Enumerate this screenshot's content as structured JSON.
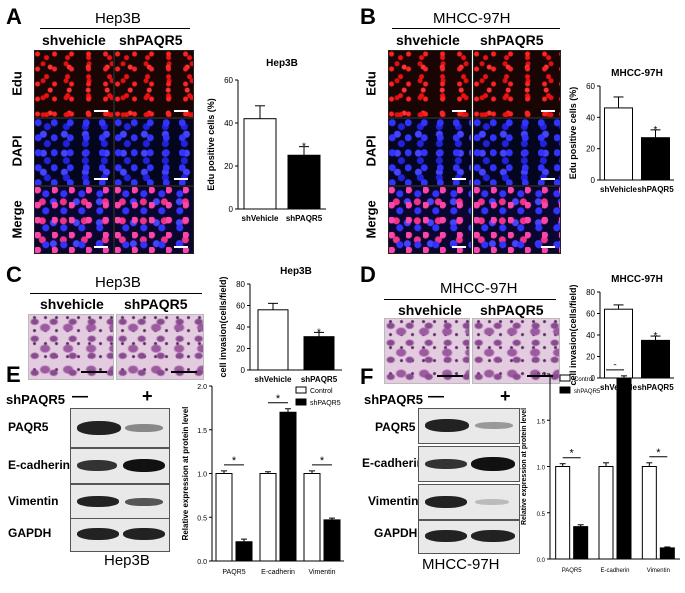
{
  "panels": {
    "A": {
      "label": "A",
      "title": "Hep3B",
      "conditions": [
        "shvehicle",
        "shPAQR5"
      ],
      "rows": [
        "Edu",
        "DAPI",
        "Merge"
      ]
    },
    "B": {
      "label": "B",
      "title": "MHCC-97H",
      "conditions": [
        "shvehicle",
        "shPAQR5"
      ],
      "rows": [
        "Edu",
        "DAPI",
        "Merge"
      ]
    },
    "C": {
      "label": "C",
      "title": "Hep3B",
      "conditions": [
        "shvehicle",
        "shPAQR5"
      ]
    },
    "D": {
      "label": "D",
      "title": "MHCC-97H",
      "conditions": [
        "shvehicle",
        "shPAQR5"
      ]
    },
    "E": {
      "label": "E",
      "cell_line": "Hep3B",
      "sh_label": "shPAQR5",
      "minus": "—",
      "plus": "+",
      "proteins": [
        "PAQR5",
        "E-cadherin",
        "Vimentin",
        "GAPDH"
      ]
    },
    "F": {
      "label": "F",
      "cell_line": "MHCC-97H",
      "sh_label": "shPAQR5",
      "minus": "—",
      "plus": "+",
      "proteins": [
        "PAQR5",
        "E-cadherin",
        "Vimentin",
        "GAPDH"
      ]
    }
  },
  "chart_data": [
    {
      "id": "A",
      "type": "bar",
      "title": "Hep3B",
      "ylabel": "Edu positive cells (%)",
      "categories": [
        "shVehicle",
        "shPAQR5"
      ],
      "values": [
        42,
        25
      ],
      "errors": [
        6,
        4
      ],
      "ylim": [
        0,
        60
      ],
      "yticks": [
        0,
        20,
        40,
        60
      ],
      "fills": [
        "#ffffff",
        "#000000"
      ],
      "significance": [
        "",
        "*"
      ]
    },
    {
      "id": "B",
      "type": "bar",
      "title": "MHCC-97H",
      "ylabel": "Edu positive cells (%)",
      "categories": [
        "shVehicle",
        "shPAQR5"
      ],
      "values": [
        46,
        27
      ],
      "errors": [
        7,
        5
      ],
      "ylim": [
        0,
        60
      ],
      "yticks": [
        0,
        20,
        40,
        60
      ],
      "fills": [
        "#ffffff",
        "#000000"
      ],
      "significance": [
        "",
        "*"
      ]
    },
    {
      "id": "C",
      "type": "bar",
      "title": "Hep3B",
      "ylabel": "cell invasion(cells/field)",
      "categories": [
        "shVehicle",
        "shPAQR5"
      ],
      "values": [
        56,
        31
      ],
      "errors": [
        6,
        4
      ],
      "ylim": [
        0,
        80
      ],
      "yticks": [
        0,
        20,
        40,
        60,
        80
      ],
      "fills": [
        "#ffffff",
        "#000000"
      ],
      "significance": [
        "",
        "*"
      ]
    },
    {
      "id": "D",
      "type": "bar",
      "title": "MHCC-97H",
      "ylabel": "cell invasion(cells/field)",
      "categories": [
        "shVehicle",
        "shPAQR5"
      ],
      "values": [
        64,
        35
      ],
      "errors": [
        4,
        4
      ],
      "ylim": [
        0,
        80
      ],
      "yticks": [
        0,
        20,
        40,
        60,
        80
      ],
      "fills": [
        "#ffffff",
        "#000000"
      ],
      "significance": [
        "",
        "*"
      ]
    },
    {
      "id": "E",
      "type": "bar",
      "title": "",
      "ylabel": "Relative expression at protein level",
      "categories": [
        "PAQR5",
        "E-cadherin",
        "Vimentin"
      ],
      "ylim": [
        0,
        2.0
      ],
      "yticks": [
        0.0,
        0.5,
        1.0,
        1.5,
        2.0
      ],
      "legend": "top-right",
      "series": [
        {
          "name": "Control",
          "values": [
            1.0,
            1.0,
            1.0
          ],
          "errors": [
            0.03,
            0.02,
            0.03
          ],
          "fill": "#ffffff"
        },
        {
          "name": "shPAQR5",
          "values": [
            0.22,
            1.7,
            0.47
          ],
          "errors": [
            0.03,
            0.04,
            0.02
          ],
          "fill": "#000000"
        }
      ],
      "significance": [
        "*",
        "*",
        "*"
      ]
    },
    {
      "id": "F",
      "type": "bar",
      "title": "",
      "ylabel": "Relative expression at protein level",
      "categories": [
        "PAQR5",
        "E-cadherin",
        "Vimentin"
      ],
      "ylim": [
        0,
        2.0
      ],
      "yticks": [
        0.0,
        0.5,
        1.0,
        1.5,
        2.0
      ],
      "legend": "top-left",
      "series": [
        {
          "name": "Control",
          "values": [
            1.0,
            1.0,
            1.0
          ],
          "errors": [
            0.03,
            0.04,
            0.04
          ],
          "fill": "#ffffff"
        },
        {
          "name": "shPAQR5",
          "values": [
            0.35,
            1.95,
            0.12
          ],
          "errors": [
            0.02,
            0.03,
            0.01
          ],
          "fill": "#000000"
        }
      ],
      "significance": [
        "*",
        "*",
        "*"
      ]
    }
  ]
}
